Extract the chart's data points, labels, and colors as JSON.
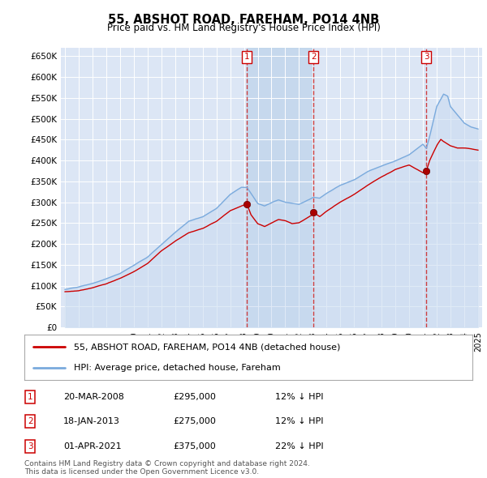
{
  "title": "55, ABSHOT ROAD, FAREHAM, PO14 4NB",
  "subtitle": "Price paid vs. HM Land Registry's House Price Index (HPI)",
  "background_color": "#ffffff",
  "plot_bg_color": "#dce6f5",
  "grid_color": "#ffffff",
  "ylim": [
    0,
    670000
  ],
  "yticks": [
    0,
    50000,
    100000,
    150000,
    200000,
    250000,
    300000,
    350000,
    400000,
    450000,
    500000,
    550000,
    600000,
    650000
  ],
  "ytick_labels": [
    "£0",
    "£50K",
    "£100K",
    "£150K",
    "£200K",
    "£250K",
    "£300K",
    "£350K",
    "£400K",
    "£450K",
    "£500K",
    "£550K",
    "£600K",
    "£650K"
  ],
  "sale_years_dec": [
    2008.22,
    2013.05,
    2021.25
  ],
  "sale_prices": [
    295000,
    275000,
    375000
  ],
  "sale_labels": [
    "1",
    "2",
    "3"
  ],
  "vline_color": "#cc2222",
  "red_line_color": "#cc0000",
  "blue_line_color": "#7aaadd",
  "blue_fill_color": "#c8daf0",
  "legend_entries": [
    "55, ABSHOT ROAD, FAREHAM, PO14 4NB (detached house)",
    "HPI: Average price, detached house, Fareham"
  ],
  "table_rows": [
    {
      "label": "1",
      "date": "20-MAR-2008",
      "price": "£295,000",
      "hpi": "12% ↓ HPI"
    },
    {
      "label": "2",
      "date": "18-JAN-2013",
      "price": "£275,000",
      "hpi": "12% ↓ HPI"
    },
    {
      "label": "3",
      "date": "01-APR-2021",
      "price": "£375,000",
      "hpi": "22% ↓ HPI"
    }
  ],
  "footer": "Contains HM Land Registry data © Crown copyright and database right 2024.\nThis data is licensed under the Open Government Licence v3.0.",
  "xstart_year": 1995,
  "xend_year": 2025
}
